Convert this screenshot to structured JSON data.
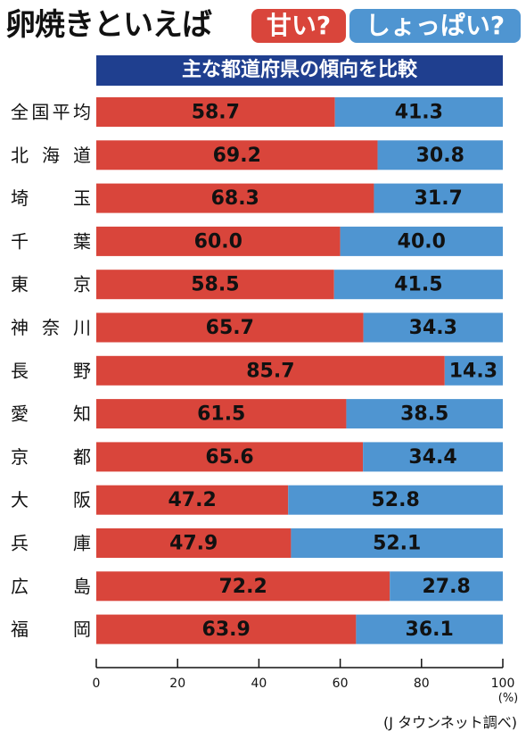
{
  "header": {
    "title": "卵焼きといえば",
    "sweet_label": "甘い?",
    "salty_label": "しょっぱい?",
    "subtitle": "主な都道府県の傾向を比較"
  },
  "colors": {
    "sweet": "#d9453b",
    "salty": "#4f95d1",
    "subtitle_bg": "#1f3f8f"
  },
  "chart_data": {
    "type": "bar",
    "stacked": true,
    "orientation": "horizontal",
    "categories": [
      "全国平均",
      "北海道",
      "埼玉",
      "千葉",
      "東京",
      "神奈川",
      "長野",
      "愛知",
      "京都",
      "大阪",
      "兵庫",
      "広島",
      "福岡"
    ],
    "series": [
      {
        "name": "甘い?",
        "values": [
          58.7,
          69.2,
          68.3,
          60.0,
          58.5,
          65.7,
          85.7,
          61.5,
          65.6,
          47.2,
          47.9,
          72.2,
          63.9
        ]
      },
      {
        "name": "しょっぱい?",
        "values": [
          41.3,
          30.8,
          31.7,
          40.0,
          41.5,
          34.3,
          14.3,
          38.5,
          34.4,
          52.8,
          52.1,
          27.8,
          36.1
        ]
      }
    ],
    "value_labels": [
      [
        "58.7",
        "41.3"
      ],
      [
        "69.2",
        "30.8"
      ],
      [
        "68.3",
        "31.7"
      ],
      [
        "60.0",
        "40.0"
      ],
      [
        "58.5",
        "41.5"
      ],
      [
        "65.7",
        "34.3"
      ],
      [
        "85.7",
        "14.3"
      ],
      [
        "61.5",
        "38.5"
      ],
      [
        "65.6",
        "34.4"
      ],
      [
        "47.2",
        "52.8"
      ],
      [
        "47.9",
        "52.1"
      ],
      [
        "72.2",
        "27.8"
      ],
      [
        "63.9",
        "36.1"
      ]
    ],
    "xlim": [
      0,
      100
    ],
    "xticks": [
      0,
      20,
      40,
      60,
      80,
      100
    ],
    "xlabel": "(%)",
    "title": "主な都道府県の傾向を比較",
    "grid": false
  },
  "source": "(J タウンネット調べ)"
}
